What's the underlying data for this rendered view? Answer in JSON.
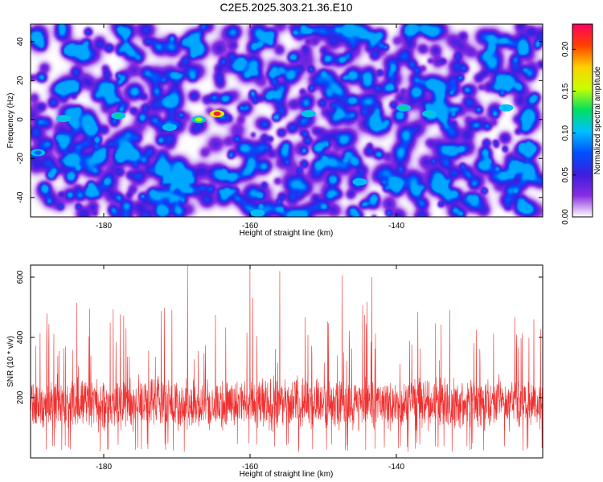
{
  "title": "C2E5.2025.303.21.36.E10",
  "colors": {
    "snr_line": "#f03030",
    "background": "#ffffff",
    "colormap": [
      "#ffffff",
      "#8a2be2",
      "#3a1ee0",
      "#0050ff",
      "#00c0ff",
      "#00e060",
      "#c8ff00",
      "#ffd000",
      "#ff4000",
      "#ff0060"
    ]
  },
  "chart_data": [
    {
      "type": "heatmap",
      "xlabel": "Height of straight line (km)",
      "ylabel": "Frequency (Hz)",
      "xlim": [
        -190,
        -120
      ],
      "ylim": [
        -50,
        49
      ],
      "x_ticks": [
        -180,
        -160,
        -140
      ],
      "y_ticks": [
        -40,
        -20,
        0,
        20,
        40
      ],
      "colorbar": {
        "label": "Normalized spectral amplitude",
        "range": [
          0,
          0.23
        ],
        "ticks": [
          0.0,
          0.05,
          0.1,
          0.15,
          0.2
        ],
        "tick_labels": [
          "0.00",
          "0.05",
          "0.10",
          "0.15",
          "0.20"
        ]
      },
      "hotspots": [
        {
          "x": -164.5,
          "y": 3,
          "value": 0.22
        },
        {
          "x": -167,
          "y": 0,
          "value": 0.15
        },
        {
          "x": -178,
          "y": 2,
          "value": 0.12
        },
        {
          "x": -185.5,
          "y": 0.5,
          "value": 0.11
        },
        {
          "x": -171,
          "y": -4,
          "value": 0.1
        },
        {
          "x": -152,
          "y": 3,
          "value": 0.11
        },
        {
          "x": -139,
          "y": 6,
          "value": 0.12
        },
        {
          "x": -135.5,
          "y": 3,
          "value": 0.11
        },
        {
          "x": -125,
          "y": 6,
          "value": 0.1
        },
        {
          "x": -145,
          "y": -32,
          "value": 0.1
        },
        {
          "x": -159,
          "y": -48,
          "value": 0.1
        },
        {
          "x": -189,
          "y": -17,
          "value": 0.08
        }
      ]
    },
    {
      "type": "line",
      "xlabel": "Height of straight line (km)",
      "ylabel": "SNR (10 * v/v)",
      "xlim": [
        -190,
        -120
      ],
      "ylim": [
        0,
        640
      ],
      "x_ticks": [
        -180,
        -160,
        -140
      ],
      "y_ticks": [
        200,
        400,
        600
      ],
      "series": [
        {
          "name": "",
          "baseline": 180,
          "spread": 70,
          "peak_heights": [
            640,
            630,
            620,
            605,
            600
          ]
        }
      ]
    }
  ]
}
